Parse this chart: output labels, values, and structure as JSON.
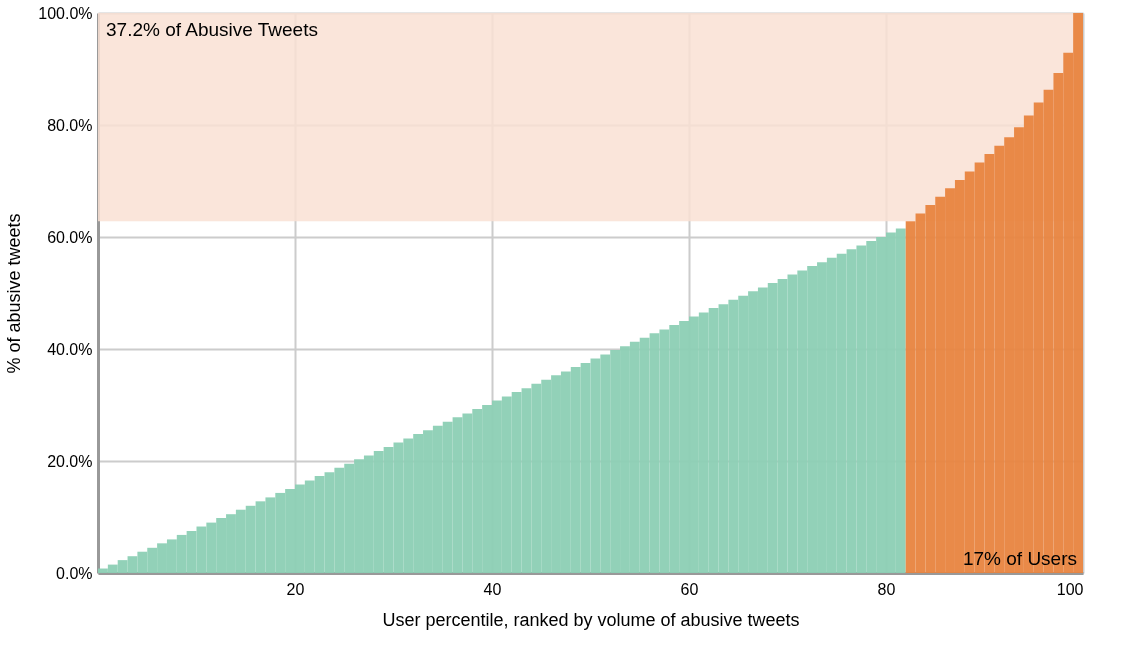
{
  "chart_data": {
    "type": "bar",
    "xlabel": "User percentile, ranked by volume of abusive tweets",
    "ylabel": "% of abusive tweets",
    "series": [
      {
        "color": "#8ccfb4",
        "x": [
          1,
          2,
          3,
          4,
          5,
          6,
          7,
          8,
          9,
          10,
          11,
          12,
          13,
          14,
          15,
          16,
          17,
          18,
          19,
          20,
          21,
          22,
          23,
          24,
          25,
          26,
          27,
          28,
          29,
          30,
          31,
          32,
          33,
          34,
          35,
          36,
          37,
          38,
          39,
          40,
          41,
          42,
          43,
          44,
          45,
          46,
          47,
          48,
          49,
          50,
          51,
          52,
          53,
          54,
          55,
          56,
          57,
          58,
          59,
          60,
          61,
          62,
          63,
          64,
          65,
          66,
          67,
          68,
          69,
          70,
          71,
          72,
          73,
          74,
          75,
          76,
          77,
          78,
          79,
          80,
          81,
          82
        ],
        "values": [
          0.8,
          1.5,
          2.3,
          3.0,
          3.8,
          4.5,
          5.3,
          6.0,
          6.8,
          7.5,
          8.3,
          9.0,
          9.8,
          10.5,
          11.3,
          12.0,
          12.8,
          13.5,
          14.3,
          15.0,
          15.8,
          16.5,
          17.3,
          18.0,
          18.8,
          19.5,
          20.3,
          21.0,
          21.8,
          22.5,
          23.3,
          24.0,
          24.8,
          25.5,
          26.3,
          27.0,
          27.8,
          28.5,
          29.3,
          30.0,
          30.8,
          31.5,
          32.3,
          33.0,
          33.8,
          34.5,
          35.3,
          36.0,
          36.8,
          37.5,
          38.3,
          39.0,
          39.8,
          40.5,
          41.3,
          42.0,
          42.8,
          43.5,
          44.3,
          45.0,
          45.8,
          46.5,
          47.3,
          48.0,
          48.8,
          49.5,
          50.3,
          51.0,
          51.8,
          52.5,
          53.3,
          54.0,
          54.8,
          55.5,
          56.3,
          57.0,
          57.8,
          58.5,
          59.3,
          60.0,
          60.8,
          61.5
        ]
      },
      {
        "color": "#e8843f",
        "x": [
          83,
          84,
          85,
          86,
          87,
          88,
          89,
          90,
          91,
          92,
          93,
          94,
          95,
          96,
          97,
          98,
          99,
          100
        ],
        "values": [
          62.8,
          64.2,
          65.7,
          67.2,
          68.7,
          70.2,
          71.7,
          73.3,
          74.8,
          76.3,
          77.8,
          79.6,
          81.7,
          84.0,
          86.3,
          89.3,
          92.9,
          100.0
        ]
      }
    ],
    "xlim": [
      0,
      100
    ],
    "xticks": [
      20,
      40,
      60,
      80,
      100
    ],
    "ylim": [
      0,
      100
    ],
    "yticks": [
      {
        "value": 0,
        "label": "0.0%"
      },
      {
        "value": 20,
        "label": "20.0%"
      },
      {
        "value": 40,
        "label": "40.0%"
      },
      {
        "value": 60,
        "label": "60.0%"
      },
      {
        "value": 80,
        "label": "80.0%"
      },
      {
        "value": 100,
        "label": "100.0%"
      }
    ],
    "bands": [
      {
        "axis": "y",
        "from": 62.8,
        "to": 100,
        "label": "37.2% of Abusive Tweets",
        "color": "#f9e1d3"
      }
    ],
    "annotations": [
      "17% of Users"
    ],
    "grid": true
  }
}
